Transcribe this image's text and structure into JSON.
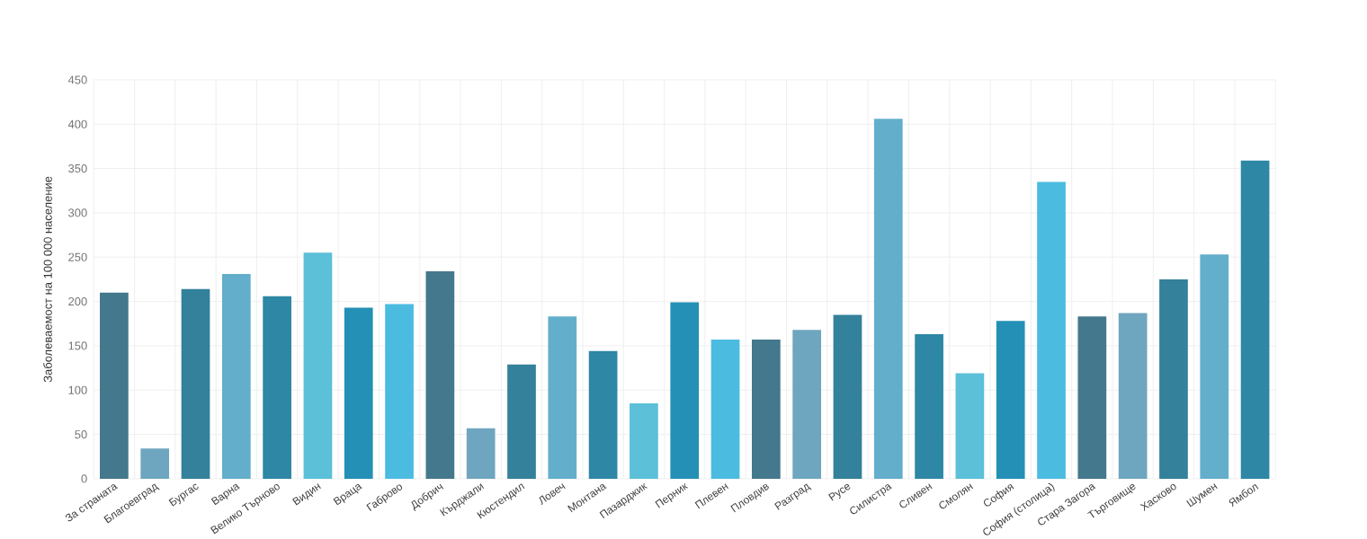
{
  "chart_data": {
    "type": "bar",
    "ylabel": "Заболеваемост на 100 000 население",
    "categories": [
      "За страната",
      "Благоевград",
      "Бургас",
      "Варна",
      "Велико Търново",
      "Видин",
      "Враца",
      "Габрово",
      "Добрич",
      "Кърджали",
      "Кюстендил",
      "Ловеч",
      "Монтана",
      "Пазарджик",
      "Перник",
      "Плевен",
      "Пловдив",
      "Разград",
      "Русе",
      "Силистра",
      "Сливен",
      "Смолян",
      "София",
      "София (столица)",
      "Стара Загора",
      "Търговище",
      "Хасково",
      "Шумен",
      "Ямбол"
    ],
    "values": [
      210,
      34,
      214,
      231,
      206,
      255,
      193,
      197,
      234,
      57,
      129,
      183,
      144,
      85,
      199,
      157,
      157,
      168,
      185,
      406,
      163,
      119,
      178,
      335,
      183,
      187,
      225,
      253,
      359
    ],
    "colors": [
      "#44788c",
      "#6fa6bf",
      "#34819b",
      "#62aecb",
      "#2d87a5",
      "#5bc0d8",
      "#2490b5",
      "#4bbbe0",
      "#44788c",
      "#6fa6bf",
      "#34819b",
      "#62aecb",
      "#2d87a5",
      "#5bc0d8",
      "#2490b5",
      "#4bbbe0",
      "#44788c",
      "#6fa6bf",
      "#34819b",
      "#62aecb",
      "#2d87a5",
      "#5bc0d8",
      "#2490b5",
      "#4bbbe0",
      "#44788c",
      "#6fa6bf",
      "#34819b",
      "#62aecb",
      "#2d87a5"
    ],
    "ylim": [
      0,
      450
    ],
    "yticks": [
      0,
      50,
      100,
      150,
      200,
      250,
      300,
      350,
      400,
      450
    ],
    "grid": true
  }
}
